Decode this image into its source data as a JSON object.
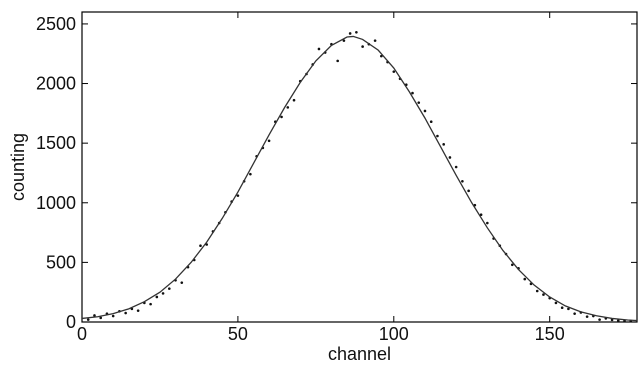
{
  "chart_data": {
    "type": "scatter",
    "title": "",
    "xlabel": "channel",
    "ylabel": "counting",
    "xlim": [
      0,
      178
    ],
    "ylim": [
      0,
      2600
    ],
    "x_ticks": [
      0,
      50,
      100,
      150
    ],
    "y_ticks": [
      0,
      500,
      1000,
      1500,
      2000,
      2500
    ],
    "grid": false,
    "legend": "none",
    "colors": {
      "line": "#333333",
      "points": "#111111",
      "axes": "#000000"
    },
    "fit_curve": {
      "x": [
        0,
        5,
        10,
        15,
        20,
        25,
        30,
        35,
        40,
        45,
        50,
        55,
        60,
        65,
        70,
        75,
        80,
        85,
        87,
        90,
        95,
        100,
        105,
        110,
        115,
        120,
        125,
        130,
        135,
        140,
        145,
        150,
        155,
        160,
        165,
        170,
        175,
        178
      ],
      "y": [
        30,
        44,
        70,
        110,
        170,
        250,
        360,
        500,
        670,
        870,
        1090,
        1330,
        1570,
        1800,
        2010,
        2190,
        2320,
        2390,
        2395,
        2370,
        2280,
        2130,
        1930,
        1710,
        1470,
        1230,
        1000,
        790,
        600,
        440,
        310,
        210,
        135,
        85,
        52,
        30,
        17,
        12
      ]
    },
    "series": [
      {
        "x": [
          2,
          4,
          6,
          8,
          10,
          12,
          14,
          16,
          18,
          20,
          22,
          24,
          26,
          28,
          30,
          32,
          34,
          36,
          38,
          40,
          42,
          44,
          46,
          48,
          50,
          52,
          54,
          56,
          58,
          60,
          62,
          64,
          66,
          68,
          70,
          72,
          74,
          76,
          78,
          80,
          82,
          84,
          86,
          88,
          90,
          92,
          94,
          96,
          98,
          100,
          102,
          104,
          106,
          108,
          110,
          112,
          114,
          116,
          118,
          120,
          122,
          124,
          126,
          128,
          130,
          132,
          134,
          136,
          138,
          140,
          142,
          144,
          146,
          148,
          150,
          152,
          154,
          156,
          158,
          160,
          162,
          164,
          166,
          168,
          170,
          172,
          174,
          176
        ],
        "y": [
          20,
          55,
          35,
          70,
          50,
          90,
          75,
          110,
          95,
          160,
          150,
          210,
          240,
          280,
          350,
          330,
          460,
          520,
          640,
          650,
          760,
          830,
          920,
          1010,
          1060,
          1180,
          1240,
          1390,
          1460,
          1520,
          1680,
          1720,
          1800,
          1860,
          2020,
          2080,
          2160,
          2290,
          2260,
          2330,
          2190,
          2360,
          2420,
          2430,
          2310,
          2330,
          2360,
          2230,
          2180,
          2100,
          2040,
          1990,
          1920,
          1840,
          1770,
          1680,
          1560,
          1490,
          1380,
          1300,
          1180,
          1100,
          980,
          900,
          830,
          700,
          640,
          570,
          480,
          450,
          360,
          320,
          260,
          230,
          200,
          160,
          120,
          110,
          70,
          80,
          45,
          50,
          20,
          30,
          18,
          12,
          10,
          8
        ]
      }
    ]
  }
}
